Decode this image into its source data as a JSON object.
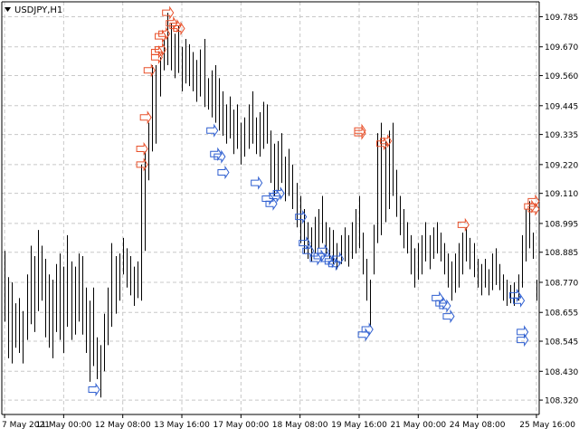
{
  "window": {
    "symbol_title": "USDJPY,H1",
    "collapse_icon": "triangle-down-icon"
  },
  "colors": {
    "background": "#ffffff",
    "grid": "#c8c8c8",
    "bars": "#000000",
    "axis_text": "#000000",
    "sell_arrow": "#e8502a",
    "buy_arrow": "#2f5fd0"
  },
  "chart_data": {
    "type": "ohlc",
    "title": "USDJPY,H1",
    "grid": true,
    "legend": "none",
    "ylim": [
      108.28,
      109.84
    ],
    "y_ticks": [
      "109.785",
      "109.670",
      "109.560",
      "109.445",
      "109.335",
      "109.220",
      "109.110",
      "108.995",
      "108.885",
      "108.770",
      "108.655",
      "108.545",
      "108.430",
      "108.320"
    ],
    "x_ticks": [
      "7 May 2021",
      "11 May 00:00",
      "12 May 08:00",
      "13 May 16:00",
      "17 May 00:00",
      "18 May 08:00",
      "19 May 16:00",
      "21 May 00:00",
      "24 May 08:00",
      "25 May 16:00"
    ],
    "bars_count": 145,
    "bar_ranges": [
      [
        108.62,
        108.89
      ],
      [
        108.48,
        108.79
      ],
      [
        108.46,
        108.77
      ],
      [
        108.52,
        108.69
      ],
      [
        108.5,
        108.71
      ],
      [
        108.46,
        108.66
      ],
      [
        108.55,
        108.8
      ],
      [
        108.61,
        108.91
      ],
      [
        108.58,
        108.87
      ],
      [
        108.66,
        108.97
      ],
      [
        108.7,
        108.91
      ],
      [
        108.56,
        108.86
      ],
      [
        108.52,
        108.8
      ],
      [
        108.48,
        108.78
      ],
      [
        108.58,
        108.84
      ],
      [
        108.55,
        108.88
      ],
      [
        108.5,
        108.83
      ],
      [
        108.6,
        108.95
      ],
      [
        108.55,
        108.85
      ],
      [
        108.57,
        108.83
      ],
      [
        108.62,
        108.88
      ],
      [
        108.57,
        108.87
      ],
      [
        108.5,
        108.75
      ],
      [
        108.39,
        108.7
      ],
      [
        108.45,
        108.75
      ],
      [
        108.4,
        108.56
      ],
      [
        108.33,
        108.53
      ],
      [
        108.43,
        108.65
      ],
      [
        108.53,
        108.75
      ],
      [
        108.6,
        108.92
      ],
      [
        108.65,
        108.87
      ],
      [
        108.7,
        108.88
      ],
      [
        108.8,
        108.94
      ],
      [
        108.75,
        108.9
      ],
      [
        108.72,
        108.87
      ],
      [
        108.68,
        108.83
      ],
      [
        108.71,
        108.85
      ],
      [
        108.7,
        109.22
      ],
      [
        108.89,
        109.27
      ],
      [
        109.16,
        109.38
      ],
      [
        109.27,
        109.6
      ],
      [
        109.3,
        109.6
      ],
      [
        109.48,
        109.63
      ],
      [
        109.58,
        109.7
      ],
      [
        109.6,
        109.8
      ],
      [
        109.58,
        109.76
      ],
      [
        109.55,
        109.72
      ],
      [
        109.57,
        109.75
      ],
      [
        109.5,
        109.67
      ],
      [
        109.53,
        109.7
      ],
      [
        109.52,
        109.68
      ],
      [
        109.5,
        109.65
      ],
      [
        109.46,
        109.62
      ],
      [
        109.48,
        109.66
      ],
      [
        109.44,
        109.7
      ],
      [
        109.43,
        109.55
      ],
      [
        109.4,
        109.58
      ],
      [
        109.38,
        109.6
      ],
      [
        109.35,
        109.55
      ],
      [
        109.33,
        109.5
      ],
      [
        109.3,
        109.45
      ],
      [
        109.32,
        109.48
      ],
      [
        109.26,
        109.43
      ],
      [
        109.28,
        109.45
      ],
      [
        109.22,
        109.38
      ],
      [
        109.25,
        109.4
      ],
      [
        109.28,
        109.45
      ],
      [
        109.3,
        109.5
      ],
      [
        109.26,
        109.4
      ],
      [
        109.25,
        109.42
      ],
      [
        109.28,
        109.46
      ],
      [
        109.3,
        109.45
      ],
      [
        109.15,
        109.35
      ],
      [
        109.1,
        109.3
      ],
      [
        109.12,
        109.31
      ],
      [
        109.15,
        109.34
      ],
      [
        109.08,
        109.25
      ],
      [
        109.1,
        109.28
      ],
      [
        109.05,
        109.22
      ],
      [
        108.98,
        109.15
      ],
      [
        108.92,
        109.1
      ],
      [
        108.88,
        109.05
      ],
      [
        108.86,
        109.0
      ],
      [
        108.85,
        108.98
      ],
      [
        108.88,
        109.02
      ],
      [
        108.9,
        109.05
      ],
      [
        108.92,
        109.1
      ],
      [
        108.88,
        109.0
      ],
      [
        108.86,
        108.98
      ],
      [
        108.84,
        108.97
      ],
      [
        108.82,
        108.92
      ],
      [
        108.84,
        108.95
      ],
      [
        108.85,
        108.98
      ],
      [
        108.83,
        108.95
      ],
      [
        108.86,
        109.0
      ],
      [
        108.88,
        109.05
      ],
      [
        108.9,
        109.1
      ],
      [
        108.8,
        108.96
      ],
      [
        108.7,
        108.86
      ],
      [
        108.6,
        108.78
      ],
      [
        108.8,
        108.99
      ],
      [
        108.92,
        109.34
      ],
      [
        108.95,
        109.38
      ],
      [
        109.0,
        109.31
      ],
      [
        109.05,
        109.35
      ],
      [
        109.1,
        109.38
      ],
      [
        109.02,
        109.2
      ],
      [
        108.95,
        109.1
      ],
      [
        108.9,
        109.05
      ],
      [
        108.88,
        109.0
      ],
      [
        108.8,
        108.95
      ],
      [
        108.75,
        108.9
      ],
      [
        108.78,
        108.92
      ],
      [
        108.8,
        108.95
      ],
      [
        108.85,
        109.0
      ],
      [
        108.82,
        108.95
      ],
      [
        108.86,
        108.98
      ],
      [
        108.88,
        109.0
      ],
      [
        108.85,
        108.96
      ],
      [
        108.8,
        108.92
      ],
      [
        108.75,
        108.88
      ],
      [
        108.7,
        108.85
      ],
      [
        108.73,
        108.88
      ],
      [
        108.75,
        108.92
      ],
      [
        108.8,
        108.96
      ],
      [
        108.85,
        108.98
      ],
      [
        108.82,
        108.94
      ],
      [
        108.79,
        108.92
      ],
      [
        108.75,
        108.86
      ],
      [
        108.72,
        108.84
      ],
      [
        108.75,
        108.86
      ],
      [
        108.72,
        108.82
      ],
      [
        108.74,
        108.88
      ],
      [
        108.76,
        108.9
      ],
      [
        108.74,
        108.84
      ],
      [
        108.7,
        108.8
      ],
      [
        108.68,
        108.78
      ],
      [
        108.69,
        108.76
      ],
      [
        108.68,
        108.77
      ],
      [
        108.7,
        108.8
      ],
      [
        108.75,
        108.95
      ],
      [
        108.85,
        109.05
      ],
      [
        108.9,
        109.08
      ],
      [
        108.86,
        108.96
      ],
      [
        108.7,
        108.78
      ]
    ],
    "sell_arrows": [
      [
        37,
        109.22
      ],
      [
        37,
        109.28
      ],
      [
        38,
        109.4
      ],
      [
        39,
        109.58
      ],
      [
        41,
        109.63
      ],
      [
        41,
        109.65
      ],
      [
        42,
        109.66
      ],
      [
        42,
        109.71
      ],
      [
        43,
        109.72
      ],
      [
        44,
        109.8
      ],
      [
        45,
        109.76
      ],
      [
        46,
        109.75
      ],
      [
        47,
        109.74
      ],
      [
        96,
        109.34
      ],
      [
        96,
        109.35
      ],
      [
        102,
        109.3
      ],
      [
        103,
        109.31
      ],
      [
        124,
        108.99
      ],
      [
        142,
        109.06
      ],
      [
        143,
        109.08
      ],
      [
        143,
        109.05
      ]
    ],
    "buy_arrows": [
      [
        24,
        108.36
      ],
      [
        56,
        109.35
      ],
      [
        57,
        109.26
      ],
      [
        58,
        109.25
      ],
      [
        59,
        109.19
      ],
      [
        68,
        109.15
      ],
      [
        71,
        109.09
      ],
      [
        72,
        109.07
      ],
      [
        73,
        109.1
      ],
      [
        74,
        109.11
      ],
      [
        80,
        109.02
      ],
      [
        81,
        108.92
      ],
      [
        82,
        108.89
      ],
      [
        84,
        108.86
      ],
      [
        85,
        108.87
      ],
      [
        86,
        108.89
      ],
      [
        87,
        108.86
      ],
      [
        88,
        108.85
      ],
      [
        89,
        108.84
      ],
      [
        90,
        108.86
      ],
      [
        97,
        108.57
      ],
      [
        98,
        108.59
      ],
      [
        117,
        108.71
      ],
      [
        118,
        108.69
      ],
      [
        119,
        108.68
      ],
      [
        120,
        108.64
      ],
      [
        138,
        108.72
      ],
      [
        139,
        108.7
      ],
      [
        140,
        108.58
      ],
      [
        140,
        108.55
      ]
    ]
  }
}
